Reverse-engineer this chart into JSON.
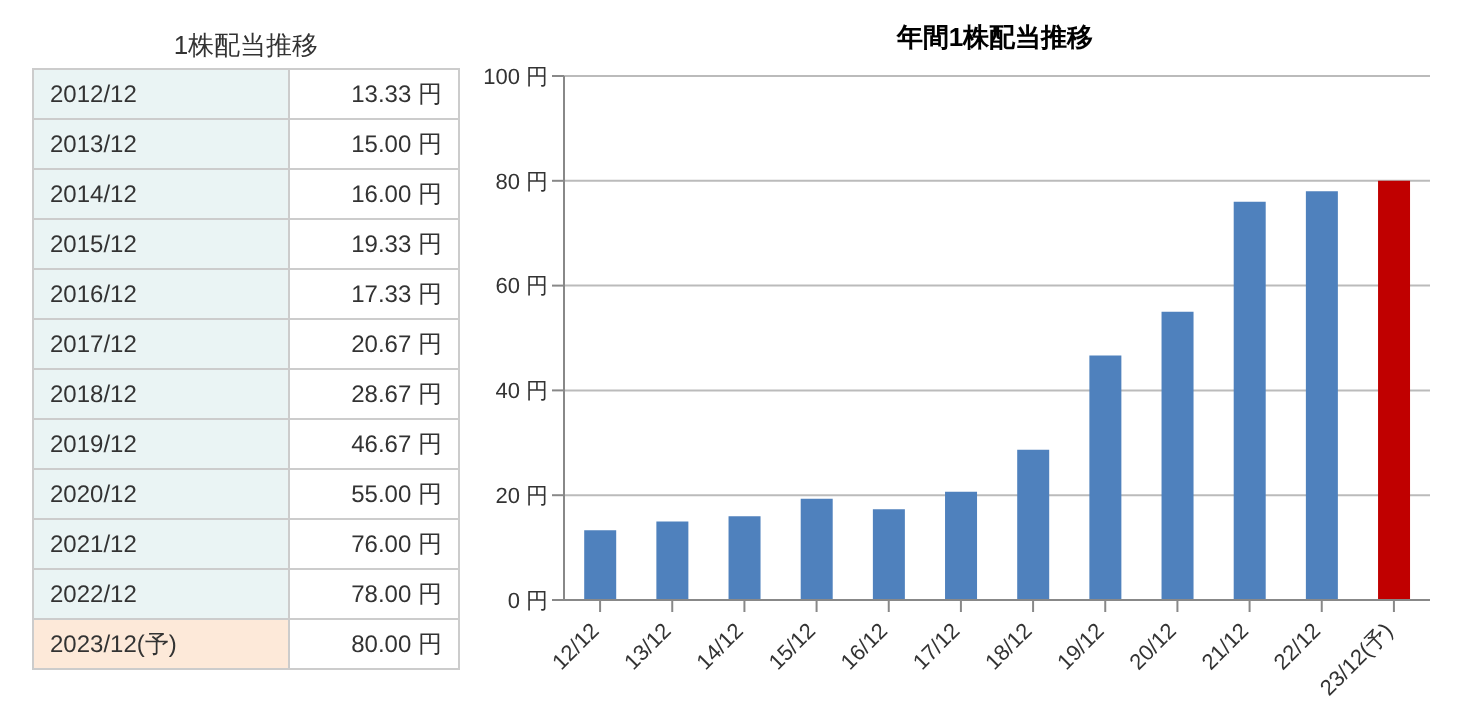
{
  "chart_data": [
    {
      "type": "other",
      "title": "1株配当推移",
      "categories": [
        "2012/12",
        "2013/12",
        "2014/12",
        "2015/12",
        "2016/12",
        "2017/12",
        "2018/12",
        "2019/12",
        "2020/12",
        "2021/12",
        "2022/12",
        "2023/12(予)"
      ],
      "value_labels": [
        "13.33 円",
        "15.00 円",
        "16.00 円",
        "19.33 円",
        "17.33 円",
        "20.67 円",
        "28.67 円",
        "46.67 円",
        "55.00 円",
        "76.00 円",
        "78.00 円",
        "80.00 円"
      ],
      "colors": [
        "#eaf4f4",
        "#eaf4f4",
        "#eaf4f4",
        "#eaf4f4",
        "#eaf4f4",
        "#eaf4f4",
        "#eaf4f4",
        "#eaf4f4",
        "#eaf4f4",
        "#eaf4f4",
        "#eaf4f4",
        "#fde9d9"
      ]
    },
    {
      "type": "bar",
      "title": "年間1株配当推移",
      "categories": [
        "12/12",
        "13/12",
        "14/12",
        "15/12",
        "16/12",
        "17/12",
        "18/12",
        "19/12",
        "20/12",
        "21/12",
        "22/12",
        "23/12(予)"
      ],
      "values": [
        13.33,
        15,
        16,
        19.33,
        17.33,
        20.67,
        28.67,
        46.67,
        55,
        76,
        78,
        80
      ],
      "colors": [
        "#4f81bd",
        "#4f81bd",
        "#4f81bd",
        "#4f81bd",
        "#4f81bd",
        "#4f81bd",
        "#4f81bd",
        "#4f81bd",
        "#4f81bd",
        "#4f81bd",
        "#4f81bd",
        "#c00000"
      ],
      "ylim": [
        0,
        100
      ],
      "yticks": [
        {
          "value": 0,
          "label": "0 円"
        },
        {
          "value": 20,
          "label": "20 円"
        },
        {
          "value": 40,
          "label": "40 円"
        },
        {
          "value": 60,
          "label": "60 円"
        },
        {
          "value": 80,
          "label": "80 円"
        },
        {
          "value": 100,
          "label": "100 円"
        }
      ],
      "grid": "y"
    }
  ]
}
